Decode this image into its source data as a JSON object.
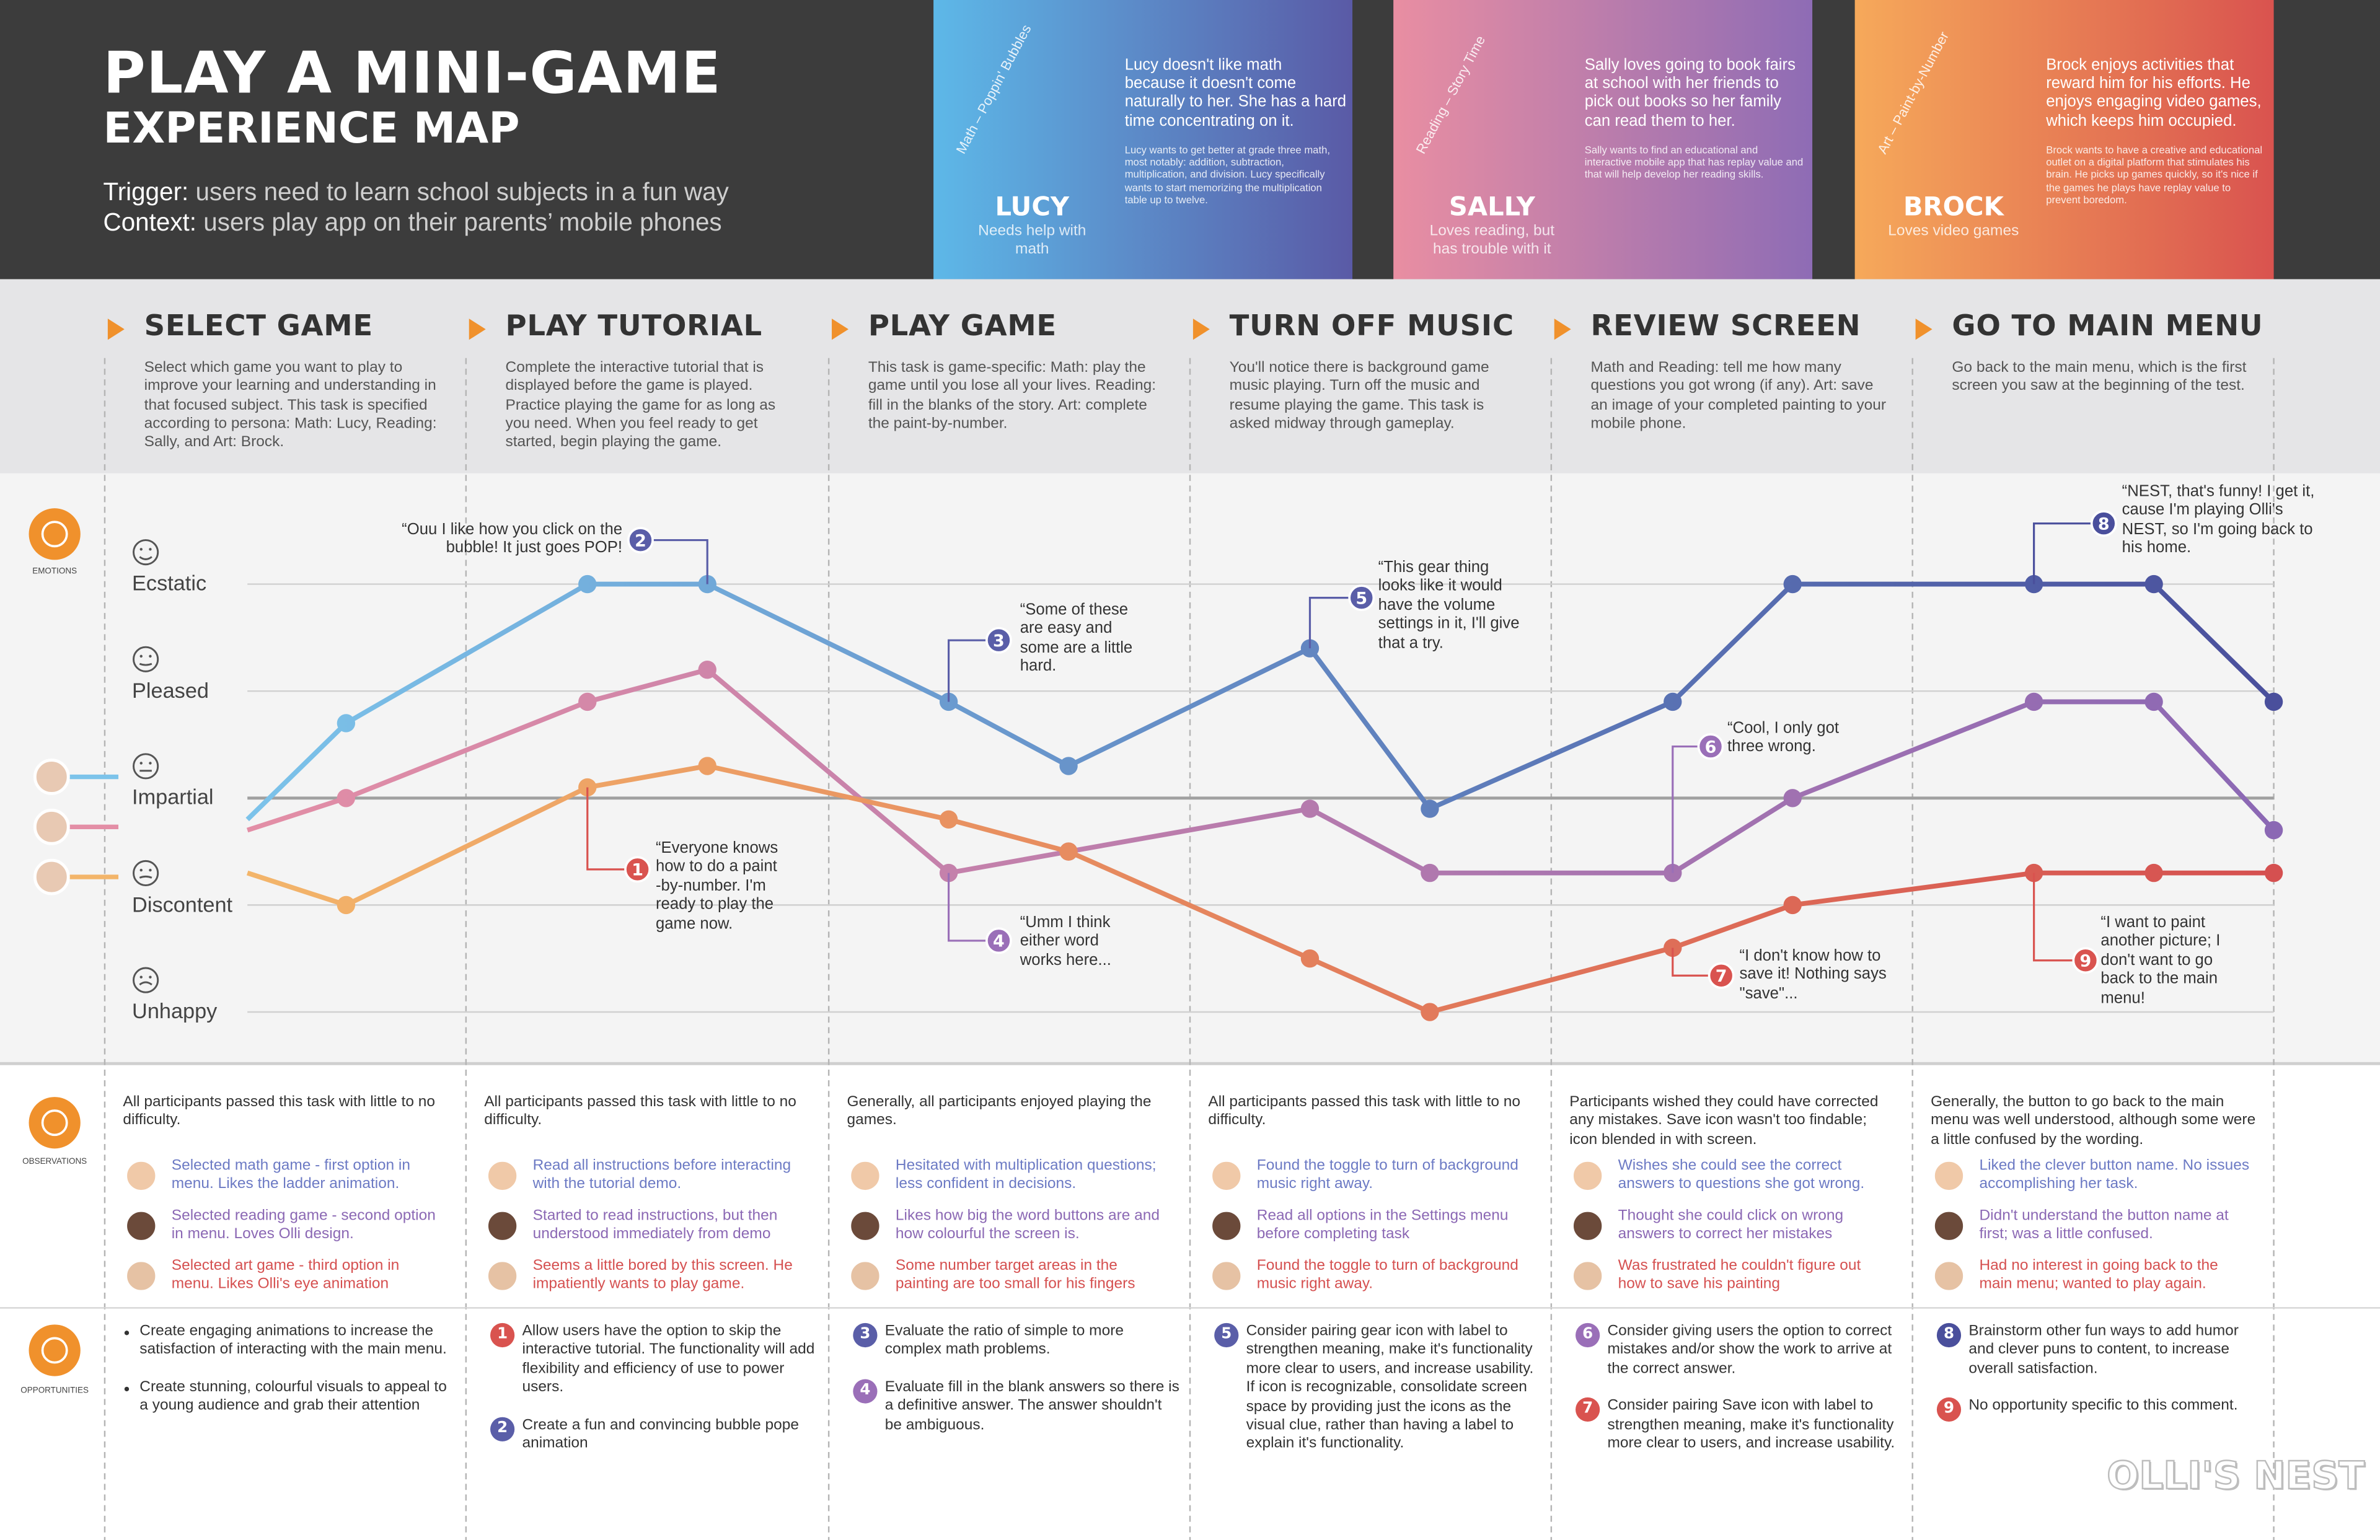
{
  "header": {
    "title": "PLAY A MINI-GAME",
    "subtitle": "EXPERIENCE MAP",
    "trigger_label": "Trigger:",
    "trigger": "users need to learn school subjects in a fun way",
    "context_label": "Context:",
    "context": "users play app on their parents’ mobile phones"
  },
  "personas": [
    {
      "tag": "Math – Poppin' Bubbles",
      "name": "LUCY",
      "summary": "Needs help with math",
      "intro": "Lucy doesn't like math because it doesn't come naturally to her. She has a hard time concentrating on it.",
      "details": "Lucy wants to get better at grade three math, most notably: addition, subtraction, multiplication, and division. Lucy specifically wants to start memorizing the multiplication table up to twelve.",
      "colors": [
        "#5db8e8",
        "#5a5aa6"
      ]
    },
    {
      "tag": "Reading – Story Time",
      "name": "SALLY",
      "summary": "Loves reading, but has trouble with it",
      "intro": "Sally loves going to book fairs at school with her friends to pick out books so her family can read them to her.",
      "details": "Sally wants to find an educational and interactive mobile app that has replay value and that will help develop her reading skills.",
      "colors": [
        "#e98ea2",
        "#8e6cb5"
      ]
    },
    {
      "tag": "Art – Paint-by-Number",
      "name": "BROCK",
      "summary": "Loves video games",
      "intro": "Brock enjoys activities that reward him for his efforts. He enjoys engaging video games, which keeps him occupied.",
      "details": "Brock wants to have a creative and educational outlet on a digital platform that stimulates his brain. He picks up games quickly, so it's nice if the games he plays have replay value to prevent boredom.",
      "colors": [
        "#f6a95a",
        "#d9534f"
      ]
    }
  ],
  "stages": [
    {
      "title": "SELECT GAME",
      "description": "Select which game you want to play to improve your learning and understanding in that focused subject. This task is specified according to persona: Math: Lucy, Reading: Sally, and Art: Brock."
    },
    {
      "title": "PLAY TUTORIAL",
      "description": "Complete the interactive tutorial that is displayed before the game is played. Practice playing the game for as long as you need. When you feel ready to get started, begin playing the game."
    },
    {
      "title": "PLAY GAME",
      "description": "This task is game-specific: Math: play the game until you lose all your lives. Reading: fill in the blanks of the story. Art: complete the paint-by-number."
    },
    {
      "title": "TURN OFF MUSIC",
      "description": "You'll notice there is background game music playing. Turn off the music and resume playing the game. This task is asked midway through gameplay."
    },
    {
      "title": "REVIEW SCREEN",
      "description": "Math and Reading: tell me how many questions you got wrong (if any). Art: save an image of your completed painting to your mobile phone."
    },
    {
      "title": "GO TO MAIN MENU",
      "description": "Go back to the main menu, which is the first screen you saw at the beginning of the test."
    }
  ],
  "emotions": {
    "label": "EMOTIONS",
    "ylim": [
      0,
      4
    ],
    "yticks": [
      {
        "value": 4,
        "label": "Ecstatic"
      },
      {
        "value": 3,
        "label": "Pleased"
      },
      {
        "value": 2,
        "label": "Impartial"
      },
      {
        "value": 1,
        "label": "Discontent"
      },
      {
        "value": 0,
        "label": "Unhappy"
      }
    ],
    "series": [
      {
        "colors": [
          "#7cc3ea",
          "#4a4f9c"
        ],
        "values": [
          1.8,
          2.7,
          4,
          4,
          2.9,
          2.3,
          3.4,
          1.9,
          2.9,
          4,
          4,
          4,
          2.9
        ]
      },
      {
        "colors": [
          "#e38ea6",
          "#8b68b4"
        ],
        "values": [
          1.7,
          2.0,
          2.9,
          3.2,
          1.3,
          1.5,
          1.9,
          1.3,
          1.3,
          2.0,
          2.9,
          2.9,
          1.7
        ]
      },
      {
        "colors": [
          "#f3b56a",
          "#d55050"
        ],
        "values": [
          1.3,
          1.0,
          2.1,
          2.3,
          1.8,
          1.5,
          0.5,
          0,
          0.6,
          1.0,
          1.3,
          1.3,
          1.3
        ]
      }
    ]
  },
  "quotes": [
    {
      "number": "1",
      "text": "“Everyone knows how to do a paint -by-number. I'm ready to play the game now.",
      "color": "#d9534f"
    },
    {
      "number": "2",
      "text": "“Ouu I like how you click on the bubble! It just goes POP!",
      "color": "#5a5ea8"
    },
    {
      "number": "3",
      "text": "“Some of these are easy and some are a little hard.",
      "color": "#5a5ea8"
    },
    {
      "number": "4",
      "text": "“Umm I think either word works here...",
      "color": "#9a6fb8"
    },
    {
      "number": "5",
      "text": "“This gear thing looks like it would have the volume settings in it, I'll give that a try.",
      "color": "#5a5ea8"
    },
    {
      "number": "6",
      "text": "“Cool, I only got three wrong.",
      "color": "#9a6fb8"
    },
    {
      "number": "7",
      "text": "“I don't know how to save it! Nothing says \"save\"...",
      "color": "#d9534f"
    },
    {
      "number": "8",
      "text": "“NEST, that's funny! I get it, cause I'm playing Olli's NEST, so I'm going back to his home.",
      "color": "#4a4f9c"
    },
    {
      "number": "9",
      "text": "“I want to paint another picture; I don't want to go back to the main menu!",
      "color": "#d9534f"
    }
  ],
  "observations": {
    "label": "OBSERVATIONS",
    "stages": [
      {
        "summary": "All participants passed this task with little to no difficulty.",
        "notes": [
          "Selected math game - first option in menu. Likes the ladder animation.",
          "Selected reading game - second option in menu. Loves Olli design.",
          "Selected art game - third option in menu. Likes Olli's eye animation"
        ]
      },
      {
        "summary": "All participants passed this task with little to no difficulty.",
        "notes": [
          "Read all instructions before interacting with the tutorial demo.",
          "Started to read instructions, but then understood immediately from demo",
          "Seems a little bored by this screen. He impatiently wants to play game."
        ]
      },
      {
        "summary": "Generally, all participants enjoyed playing the games.",
        "notes": [
          "Hesitated with multiplication questions; less confident in decisions.",
          "Likes how big the word buttons are and how colourful the screen is.",
          "Some number target areas in the painting are too small for his fingers"
        ]
      },
      {
        "summary": "All participants passed this task with little to no difficulty.",
        "notes": [
          "Found the toggle to turn of background music right away.",
          "Read all options in the Settings menu before completing task",
          "Found the toggle to turn of background music right away."
        ]
      },
      {
        "summary": "Participants wished they could have corrected any mistakes. Save icon wasn't too findable; icon blended in with screen.",
        "notes": [
          "Wishes she could see the correct answers to questions she got wrong.",
          "Thought she could click on wrong answers to correct her mistakes",
          "Was frustrated he couldn't figure out how to save his painting"
        ]
      },
      {
        "summary": "Generally, the button to go back to the main menu was well understood, although some were a little confused by the wording.",
        "notes": [
          "Liked the clever button name. No issues accomplishing her task.",
          "Didn't understand the button name at first; was a little confused.",
          "Had no interest in going back to the main menu; wanted to play again."
        ]
      }
    ]
  },
  "opportunities": {
    "label": "OPPORTUNITIES",
    "stages": [
      {
        "items": [
          {
            "text": "Create engaging animations to increase the satisfaction of interacting with the main menu."
          },
          {
            "text": "Create stunning, colourful visuals to appeal to a young audience and grab their attention"
          }
        ]
      },
      {
        "items": [
          {
            "number": "1",
            "color": "#d9534f",
            "text": "Allow users have the option to skip the interactive tutorial. The functionality will add flexibility and efficiency of use to power users."
          },
          {
            "number": "2",
            "color": "#5a5ea8",
            "text": "Create a fun and convincing bubble pope animation"
          }
        ]
      },
      {
        "items": [
          {
            "number": "3",
            "color": "#5a5ea8",
            "text": "Evaluate the ratio of simple to more complex math problems."
          },
          {
            "number": "4",
            "color": "#9a6fb8",
            "text": "Evaluate fill in the blank answers so there is a definitive answer. The answer shouldn't be ambiguous."
          }
        ]
      },
      {
        "items": [
          {
            "number": "5",
            "color": "#5a5ea8",
            "text": "Consider pairing gear icon with label to strengthen meaning, make it's functionality more clear to users, and increase usability. If icon is recognizable, consolidate screen space by providing just the icons as the visual clue, rather than having a label to explain it's functionality."
          }
        ]
      },
      {
        "items": [
          {
            "number": "6",
            "color": "#9a6fb8",
            "text": "Consider giving users the option to correct mistakes and/or show the work to arrive at the correct answer."
          },
          {
            "number": "7",
            "color": "#d9534f",
            "text": "Consider pairing Save icon with label to strengthen meaning, make it's functionality more clear to users, and increase usability."
          }
        ]
      },
      {
        "items": [
          {
            "number": "8",
            "color": "#4a4f9c",
            "text": "Brainstorm other fun ways to add humor and clever puns to content, to increase overall satisfaction."
          },
          {
            "number": "9",
            "color": "#d9534f",
            "text": "No opportunity specific to this comment."
          }
        ]
      }
    ]
  },
  "footer": {
    "logo": "OLLI'S NEST"
  }
}
